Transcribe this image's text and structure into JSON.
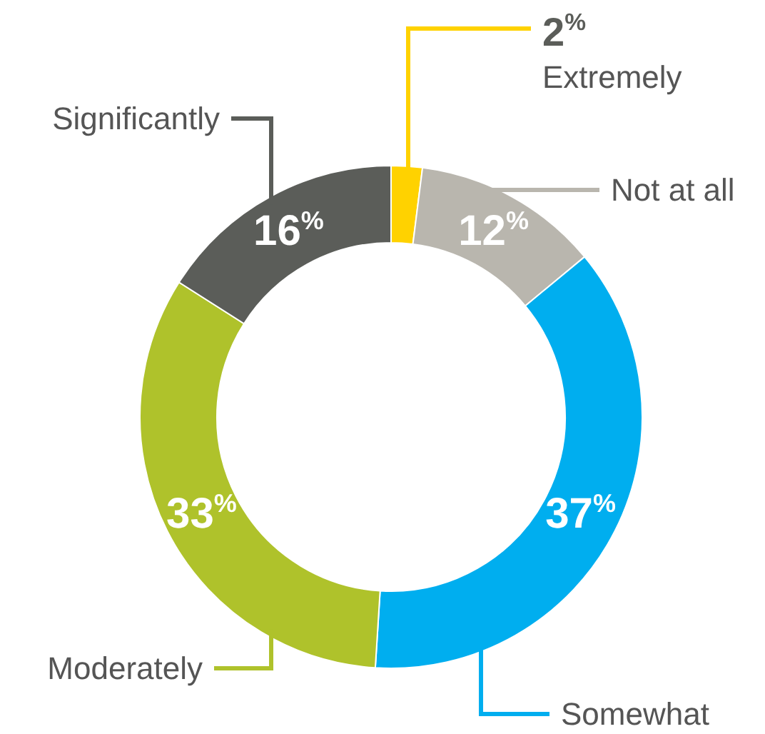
{
  "chart_data": {
    "type": "donut",
    "categories": [
      "Extremely",
      "Not at all",
      "Somewhat",
      "Moderately",
      "Significantly"
    ],
    "values": [
      2,
      12,
      37,
      33,
      16
    ],
    "colors": [
      "#ffd200",
      "#b9b6ae",
      "#00aeef",
      "#afc22b",
      "#5b5d59"
    ],
    "value_labels": [
      "2$^{%}$",
      "12$^{%}$",
      "37$^{%}$",
      "33$^{%}$",
      "16$^{%}$"
    ]
  }
}
